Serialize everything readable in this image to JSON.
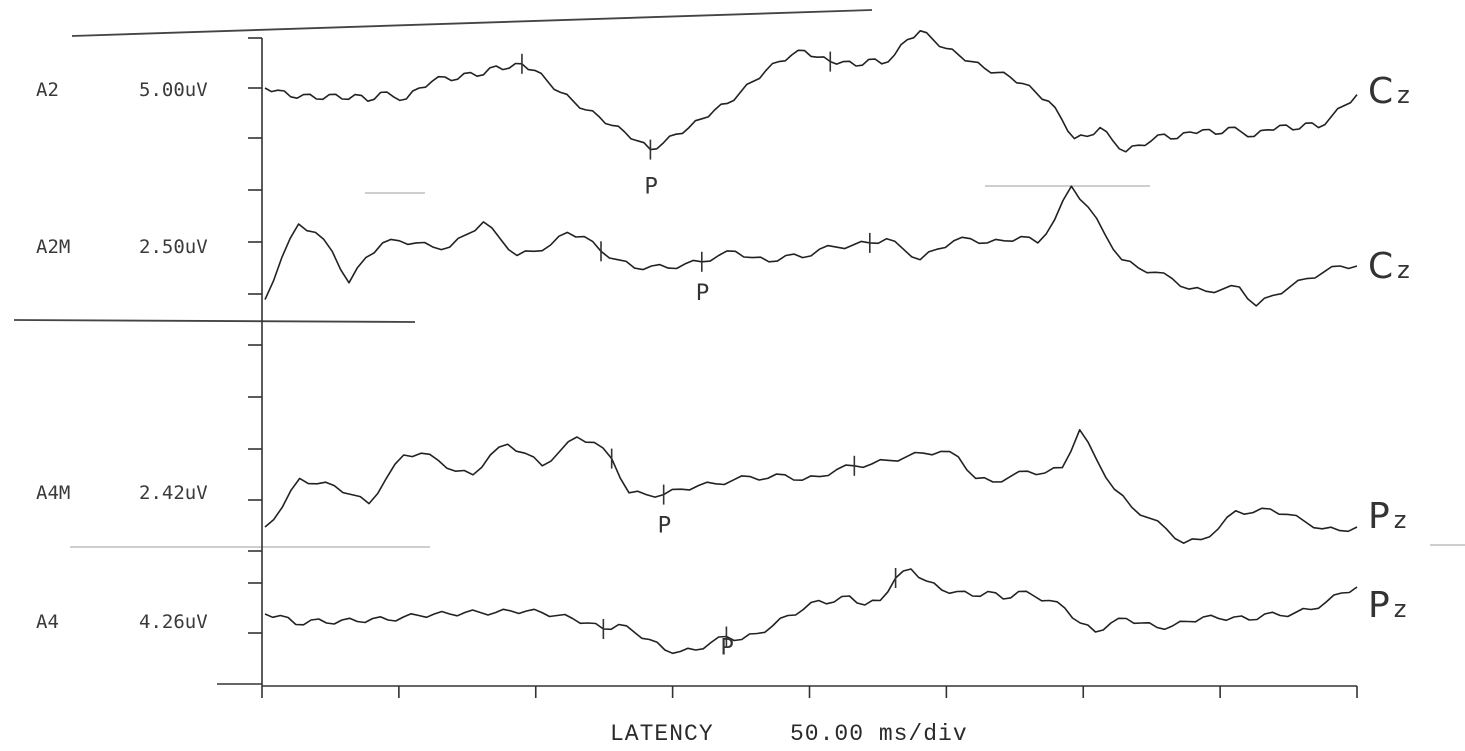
{
  "chart_data": {
    "type": "line",
    "xlabel": "LATENCY",
    "x_scale": "50.00 ms/div",
    "x_divisions": 8,
    "grid": false,
    "series": [
      {
        "name": "A2",
        "scale": "5.00uV",
        "site": "Cz",
        "peak_marker": "P",
        "values": [
          0,
          -0.1,
          -0.4,
          -0.3,
          -0.5,
          -0.3,
          -0.5,
          -0.3,
          -0.6,
          -0.2,
          -0.4,
          -0.5,
          0,
          0.3,
          0.5,
          0.4,
          0.7,
          0.6,
          1,
          0.9,
          1.1,
          0.8,
          0.3,
          -0.2,
          -0.6,
          -1,
          -1.3,
          -1.7,
          -2,
          -2.4,
          -2.8,
          -2.5,
          -2.1,
          -1.8,
          -1.4,
          -1,
          -0.7,
          -0.2,
          0.3,
          0.8,
          1.2,
          1.5,
          1.7,
          1.4,
          1.2,
          1.2,
          1,
          1.3,
          1.1,
          1.5,
          2.2,
          2.6,
          2.2,
          1.8,
          1.5,
          1.2,
          0.9,
          0.7,
          0.5,
          0.2,
          -0.2,
          -0.6,
          -1.4,
          -2.3,
          -2.2,
          -1.8,
          -2.4,
          -2.9,
          -2.6,
          -2.4,
          -2.1,
          -2.3,
          -2.0,
          -1.9,
          -2.1,
          -1.8,
          -2.0,
          -2.2,
          -1.9,
          -1.7,
          -1.9,
          -1.6,
          -1.8,
          -1.3,
          -0.8,
          -0.3
        ],
        "tick_indices": [
          20,
          30,
          44
        ]
      },
      {
        "name": "A2M",
        "scale": "2.50uV",
        "site": "Cz",
        "peak_marker": "P",
        "values": [
          -2.6,
          -0.6,
          1,
          0.6,
          -0.3,
          -1.8,
          -0.6,
          0.1,
          0.2,
          0.1,
          -0.1,
          -0.1,
          0.5,
          1.1,
          0.3,
          -0.5,
          -0.3,
          0,
          0.6,
          0.4,
          -0.3,
          -0.7,
          -1.1,
          -1.0,
          -1.1,
          -0.9,
          -0.8,
          -0.5,
          -0.3,
          -0.6,
          -0.8,
          -0.5,
          -0.6,
          -0.2,
          -0.1,
          0.0,
          0.1,
          0.3,
          -0.2,
          -0.7,
          -0.2,
          0.2,
          0.3,
          0.1,
          0.2,
          0.4,
          0.1,
          1.2,
          2.8,
          1.8,
          0.5,
          -0.7,
          -1.1,
          -1.3,
          -1.6,
          -2.1,
          -2.2,
          -2.1,
          -2.0,
          -2.9,
          -2.4,
          -2.0,
          -1.6,
          -1.3,
          -1.0,
          -1.0
        ],
        "tick_indices": [
          20,
          26,
          36
        ]
      },
      {
        "name": "A4M",
        "scale": "2.42uV",
        "site": "Pz",
        "peak_marker": "P",
        "values": [
          -1.5,
          -0.4,
          1.2,
          0.9,
          0.8,
          0.3,
          -0.2,
          1.2,
          2.5,
          2.6,
          2.2,
          1.6,
          1.4,
          2.5,
          3.1,
          2.6,
          1.9,
          2.7,
          3.5,
          3.2,
          2.3,
          0.4,
          0.3,
          0.3,
          0.6,
          0.8,
          0.9,
          1.1,
          1.3,
          1.2,
          1.4,
          1.1,
          1.3,
          1.7,
          1.9,
          2.0,
          2.2,
          2.4,
          2.6,
          2.7,
          2.4,
          1.2,
          1.0,
          1.3,
          1.6,
          1.5,
          1.8,
          3.9,
          2.2,
          0.6,
          -0.4,
          -1.0,
          -1.6,
          -2.4,
          -2.2,
          -1.6,
          -0.6,
          -0.7,
          -0.5,
          -0.8,
          -1.2,
          -1.6,
          -1.7,
          -1.5
        ],
        "tick_indices": [
          20,
          23,
          34
        ]
      },
      {
        "name": "A4",
        "scale": "4.26uV",
        "site": "Pz",
        "peak_marker": "P",
        "values": [
          0.4,
          0.3,
          -0.3,
          0,
          -0.2,
          0,
          -0.1,
          0.1,
          0,
          0.2,
          0.3,
          0.4,
          0.4,
          0.5,
          0.5,
          0.5,
          0.6,
          0.6,
          0.5,
          0.3,
          0.1,
          -0.2,
          -0.6,
          -0.3,
          -0.8,
          -1.3,
          -2.0,
          -2.1,
          -2.0,
          -1.5,
          -1.1,
          -1.3,
          -0.9,
          -0.4,
          0.3,
          0.7,
          1.3,
          1.2,
          1.6,
          1.0,
          1.3,
          2.8,
          3.4,
          2.6,
          2.0,
          1.9,
          1.6,
          1.9,
          1.4,
          1.9,
          1.6,
          1.3,
          0.8,
          -0.2,
          -0.8,
          -0.2,
          0.1,
          -0.2,
          -0.5,
          -0.4,
          -0.1,
          0.2,
          0.1,
          0.2,
          0.0,
          0.4,
          0.3,
          0.5,
          0.7,
          1.2,
          1.8,
          2.2
        ],
        "tick_indices": [
          22,
          30,
          41
        ]
      }
    ]
  }
}
